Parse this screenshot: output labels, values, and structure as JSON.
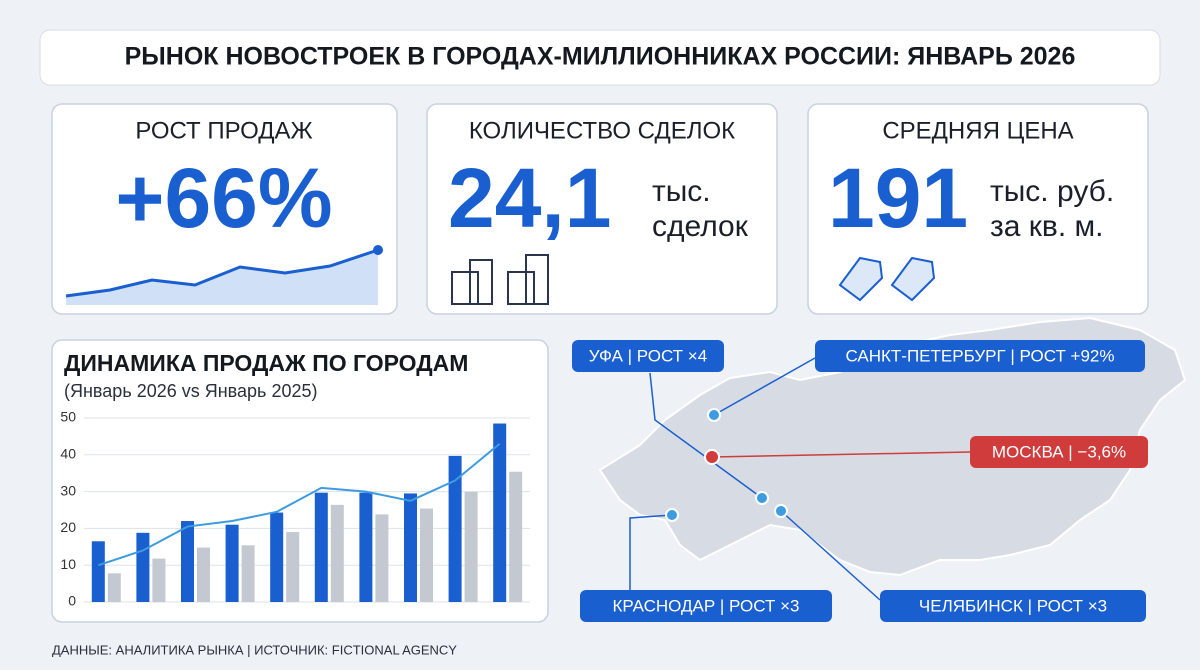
{
  "header": {
    "title": "РЫНОК НОВОСТРОЕК В ГОРОДАХ-МИЛЛИОННИКАХ РОССИИ: ЯНВАРЬ 2026"
  },
  "cards": [
    {
      "title": "РОСТ ПРОДАЖ",
      "value": "+66%"
    },
    {
      "title": "КОЛИЧЕСТВО СДЕЛОК",
      "value": "24,1",
      "unit": [
        "тыс.",
        "сделок"
      ]
    },
    {
      "title": "СРЕДНЯЯ ЦЕНА",
      "value": "191",
      "unit": [
        "тыс. руб.",
        "за кв. м."
      ]
    }
  ],
  "chart_data": {
    "type": "bar",
    "title": "ДИНАМИКА ПРОДАЖ ПО ГОРОДАМ",
    "subtitle": "(Январь 2026 vs Январь 2025)",
    "categories": [
      null,
      null,
      null,
      null,
      null,
      null,
      null,
      null,
      null,
      null
    ],
    "series": [
      {
        "color": "#1a5fd0",
        "values": [
          16.5,
          18.8,
          22,
          21,
          24.3,
          29.7,
          29.7,
          29.5,
          39.7,
          48.5
        ]
      },
      {
        "color": "#c4c9d1",
        "values": [
          7.8,
          11.8,
          14.8,
          15.4,
          19,
          26.4,
          23.8,
          25.4,
          29.9,
          35.4
        ]
      },
      {
        "type": "line",
        "color": "#3d9be0",
        "values": [
          10,
          14,
          20.5,
          22,
          24.5,
          31,
          30,
          27.5,
          33,
          43
        ]
      }
    ],
    "ylim": [
      0,
      50
    ],
    "yticks": [
      0,
      10,
      20,
      30,
      40,
      50
    ],
    "grid": true
  },
  "map": {
    "labels": [
      "УФА | РОСТ ×4",
      "САНКТ-ПЕТЕРБУРГ | РОСТ +92%",
      "МОСКВА | −3,6%",
      "КРАСНОДАР | РОСТ ×3",
      "ЧЕЛЯБИНСК | РОСТ ×3"
    ]
  },
  "footer": "ДАННЫЕ: АНАЛИТИКА РЫНКА | ИСТОЧНИК: FICTIONAL AGENCY"
}
